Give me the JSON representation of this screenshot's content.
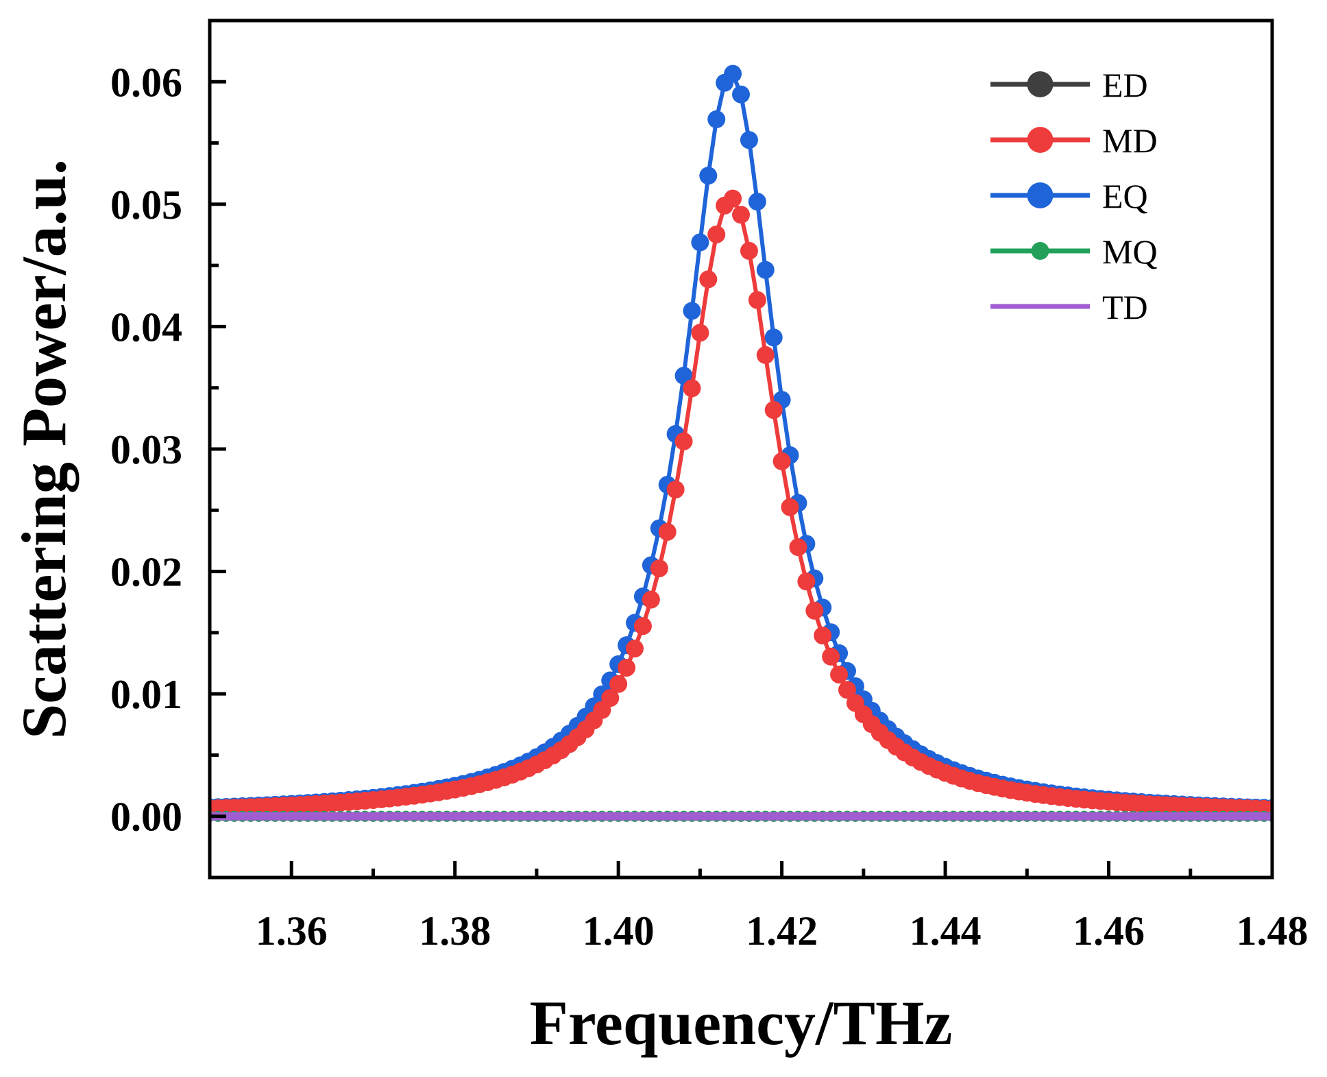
{
  "chart_data": {
    "type": "line",
    "title": "",
    "xlabel": "Frequency/THz",
    "ylabel": "Scattering Power/a.u.",
    "xlim": [
      1.35,
      1.48
    ],
    "ylim": [
      -0.005,
      0.065
    ],
    "xticks": [
      1.36,
      1.38,
      1.4,
      1.42,
      1.44,
      1.46,
      1.48
    ],
    "xtick_labels": [
      "1.36",
      "1.38",
      "1.40",
      "1.42",
      "1.44",
      "1.46",
      "1.48"
    ],
    "yticks": [
      0.0,
      0.01,
      0.02,
      0.03,
      0.04,
      0.05,
      0.06
    ],
    "ytick_labels": [
      "0.00",
      "0.01",
      "0.02",
      "0.03",
      "0.04",
      "0.05",
      "0.06"
    ],
    "grid": false,
    "legend_position": "top-right",
    "x_range": [
      1.35,
      1.48
    ],
    "x_step": 0.001,
    "series": [
      {
        "name": "ED",
        "color": "#3f3f3f",
        "marker": "circle",
        "model": "constant",
        "level": 0.0
      },
      {
        "name": "MD",
        "color": "#ee3b3b",
        "marker": "circle",
        "model": "lorentzian",
        "peak": 0.0505,
        "center": 1.4138,
        "hwhm": 0.0072
      },
      {
        "name": "EQ",
        "color": "#1f64d8",
        "marker": "circle",
        "model": "lorentzian",
        "peak": 0.0607,
        "center": 1.4138,
        "hwhm": 0.007
      },
      {
        "name": "MQ",
        "color": "#22a05a",
        "marker": "circle",
        "model": "constant",
        "level": 0.0
      },
      {
        "name": "TD",
        "color": "#a05cd0",
        "marker": "none",
        "model": "constant",
        "level": 0.0
      }
    ]
  }
}
